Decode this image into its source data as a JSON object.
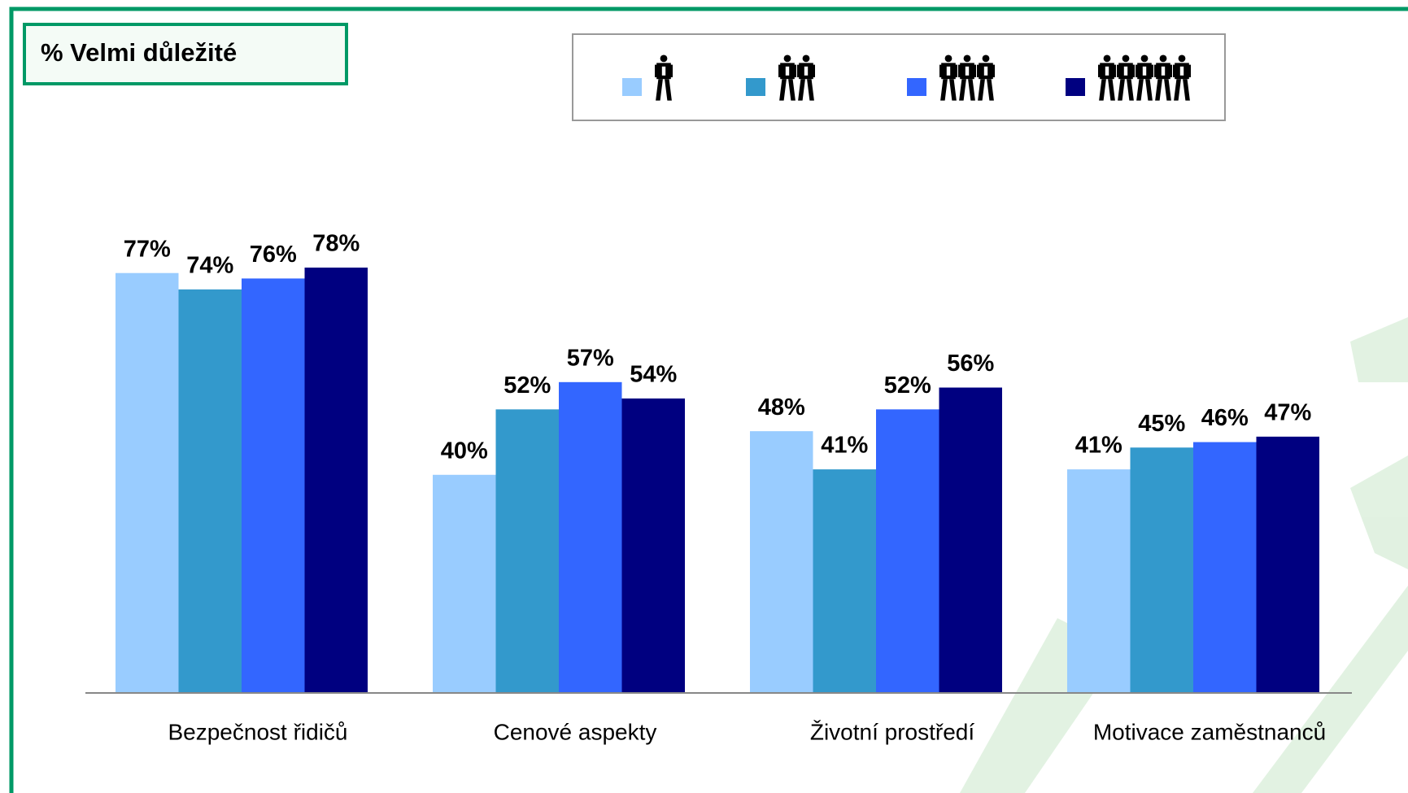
{
  "chart_data": {
    "type": "bar",
    "title": "% Velmi důležité",
    "categories": [
      "Bezpečnost řidičů",
      "Cenové aspekty",
      "Životní prostředí",
      "Motivace zaměstnanců"
    ],
    "series": [
      {
        "color": "#99ccff",
        "values": [
          77,
          40,
          48,
          41
        ],
        "value_labels": [
          "77%",
          "40%",
          "48%",
          "41%"
        ]
      },
      {
        "color": "#3399cc",
        "values": [
          74,
          52,
          41,
          45
        ],
        "value_labels": [
          "74%",
          "52%",
          "41%",
          "45%"
        ]
      },
      {
        "color": "#3366ff",
        "values": [
          76,
          57,
          52,
          46
        ],
        "value_labels": [
          "76%",
          "57%",
          "52%",
          "46%"
        ]
      },
      {
        "color": "#000080",
        "values": [
          78,
          54,
          56,
          47
        ],
        "value_labels": [
          "78%",
          "54%",
          "56%",
          "47%"
        ]
      }
    ]
  }
}
